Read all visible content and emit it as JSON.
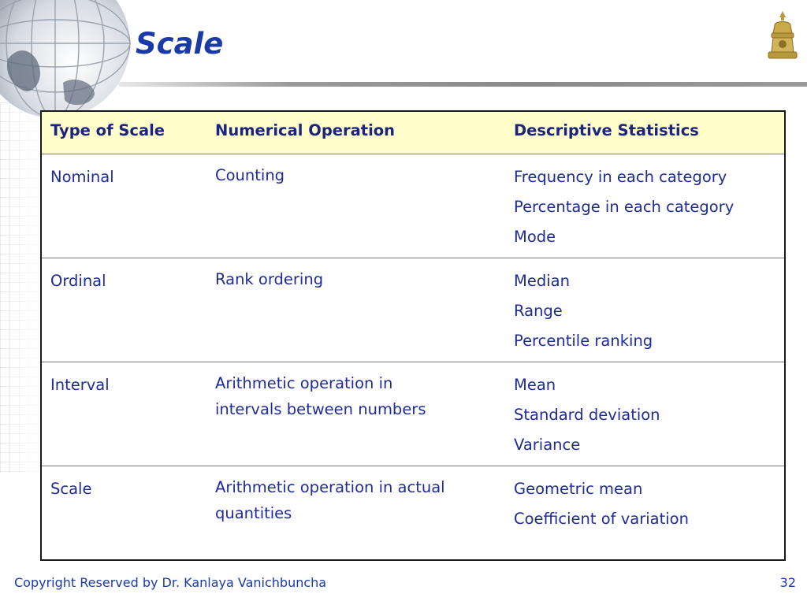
{
  "slide": {
    "title": "Scale",
    "footer": "Copyright Reserved by Dr. Kanlaya Vanichbuncha",
    "page_number": "32"
  },
  "table": {
    "headers": [
      "Type of Scale",
      "Numerical Operation",
      "Descriptive Statistics"
    ],
    "rows": [
      {
        "type": "Nominal",
        "operation": [
          "Counting"
        ],
        "statistics": [
          "Frequency in each category",
          "Percentage in each category",
          "Mode"
        ]
      },
      {
        "type": "Ordinal",
        "operation": [
          "Rank ordering"
        ],
        "statistics": [
          "Median",
          "Range",
          "Percentile ranking"
        ]
      },
      {
        "type": "Interval",
        "operation": [
          "Arithmetic operation in",
          "intervals between numbers"
        ],
        "statistics": [
          "Mean",
          "Standard deviation",
          "Variance"
        ]
      },
      {
        "type": "Scale",
        "operation": [
          "Arithmetic operation in actual",
          "quantities"
        ],
        "statistics": [
          "Geometric mean",
          "Coefficient of variation"
        ]
      }
    ]
  },
  "icons": {
    "decor_left": "globe-icon",
    "decor_right": "university-seal-icon"
  }
}
